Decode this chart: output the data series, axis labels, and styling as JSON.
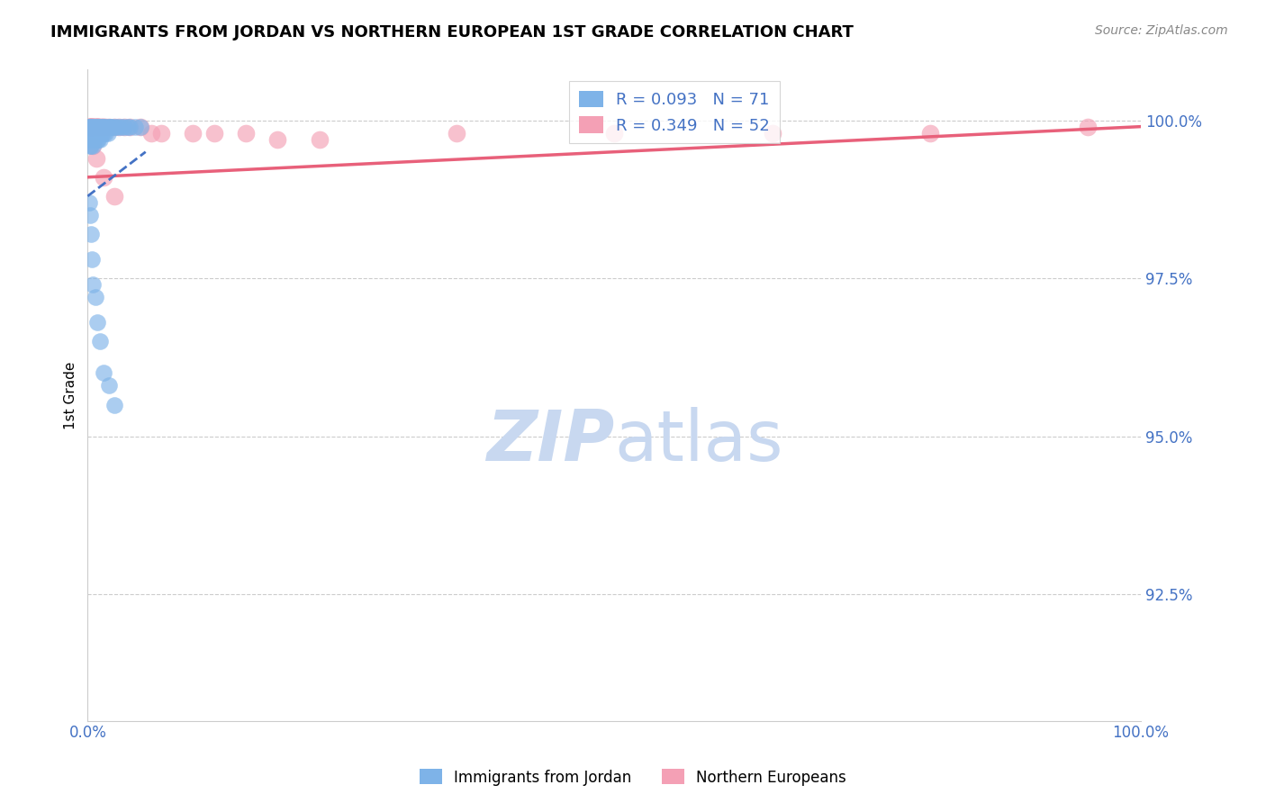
{
  "title": "IMMIGRANTS FROM JORDAN VS NORTHERN EUROPEAN 1ST GRADE CORRELATION CHART",
  "source": "Source: ZipAtlas.com",
  "ylabel": "1st Grade",
  "r_jordan": 0.093,
  "n_jordan": 71,
  "r_northern": 0.349,
  "n_northern": 52,
  "color_jordan": "#7EB3E8",
  "color_northern": "#F4A0B5",
  "color_jordan_line": "#4472C4",
  "color_northern_line": "#E8607A",
  "color_axis_labels": "#4472C4",
  "color_watermark": "#C8D8F0",
  "xmin": 0.0,
  "xmax": 1.0,
  "ymin": 0.905,
  "ymax": 1.008,
  "yticks": [
    0.925,
    0.95,
    0.975,
    1.0
  ],
  "ytick_labels": [
    "92.5%",
    "95.0%",
    "97.5%",
    "100.0%"
  ],
  "jordan_x": [
    0.001,
    0.001,
    0.001,
    0.001,
    0.001,
    0.002,
    0.002,
    0.002,
    0.002,
    0.002,
    0.003,
    0.003,
    0.003,
    0.003,
    0.004,
    0.004,
    0.004,
    0.005,
    0.005,
    0.005,
    0.005,
    0.006,
    0.006,
    0.006,
    0.007,
    0.007,
    0.007,
    0.008,
    0.008,
    0.009,
    0.009,
    0.01,
    0.01,
    0.01,
    0.011,
    0.011,
    0.012,
    0.012,
    0.013,
    0.013,
    0.014,
    0.015,
    0.015,
    0.016,
    0.017,
    0.018,
    0.019,
    0.02,
    0.021,
    0.022,
    0.023,
    0.025,
    0.027,
    0.03,
    0.032,
    0.035,
    0.038,
    0.04,
    0.045,
    0.05,
    0.001,
    0.002,
    0.003,
    0.004,
    0.005,
    0.007,
    0.009,
    0.012,
    0.015,
    0.02,
    0.025
  ],
  "jordan_y": [
    0.999,
    0.999,
    0.998,
    0.998,
    0.997,
    0.999,
    0.999,
    0.998,
    0.997,
    0.996,
    0.999,
    0.998,
    0.997,
    0.996,
    0.999,
    0.998,
    0.997,
    0.999,
    0.998,
    0.997,
    0.996,
    0.999,
    0.998,
    0.997,
    0.999,
    0.998,
    0.997,
    0.999,
    0.998,
    0.999,
    0.997,
    0.999,
    0.998,
    0.997,
    0.999,
    0.998,
    0.999,
    0.997,
    0.999,
    0.998,
    0.999,
    0.999,
    0.998,
    0.999,
    0.998,
    0.999,
    0.998,
    0.999,
    0.999,
    0.999,
    0.999,
    0.999,
    0.999,
    0.999,
    0.999,
    0.999,
    0.999,
    0.999,
    0.999,
    0.999,
    0.987,
    0.985,
    0.982,
    0.978,
    0.974,
    0.972,
    0.968,
    0.965,
    0.96,
    0.958,
    0.955
  ],
  "northern_x": [
    0.001,
    0.001,
    0.001,
    0.002,
    0.002,
    0.002,
    0.003,
    0.003,
    0.003,
    0.004,
    0.004,
    0.005,
    0.005,
    0.005,
    0.006,
    0.006,
    0.007,
    0.007,
    0.008,
    0.008,
    0.009,
    0.009,
    0.01,
    0.01,
    0.011,
    0.012,
    0.013,
    0.014,
    0.015,
    0.017,
    0.02,
    0.025,
    0.03,
    0.035,
    0.04,
    0.05,
    0.06,
    0.07,
    0.1,
    0.12,
    0.15,
    0.18,
    0.22,
    0.35,
    0.5,
    0.65,
    0.8,
    0.95,
    0.005,
    0.008,
    0.015,
    0.025
  ],
  "northern_y": [
    0.999,
    0.999,
    0.999,
    0.999,
    0.999,
    0.999,
    0.999,
    0.999,
    0.999,
    0.999,
    0.999,
    0.999,
    0.999,
    0.999,
    0.999,
    0.999,
    0.999,
    0.999,
    0.999,
    0.999,
    0.999,
    0.999,
    0.999,
    0.999,
    0.999,
    0.999,
    0.999,
    0.999,
    0.999,
    0.999,
    0.999,
    0.999,
    0.999,
    0.999,
    0.999,
    0.999,
    0.998,
    0.998,
    0.998,
    0.998,
    0.998,
    0.997,
    0.997,
    0.998,
    0.998,
    0.998,
    0.998,
    0.999,
    0.996,
    0.994,
    0.991,
    0.988
  ],
  "jordan_trend_x": [
    0.0,
    0.055
  ],
  "jordan_trend_y": [
    0.988,
    0.995
  ],
  "northern_trend_x": [
    0.0,
    1.0
  ],
  "northern_trend_y": [
    0.991,
    0.999
  ]
}
